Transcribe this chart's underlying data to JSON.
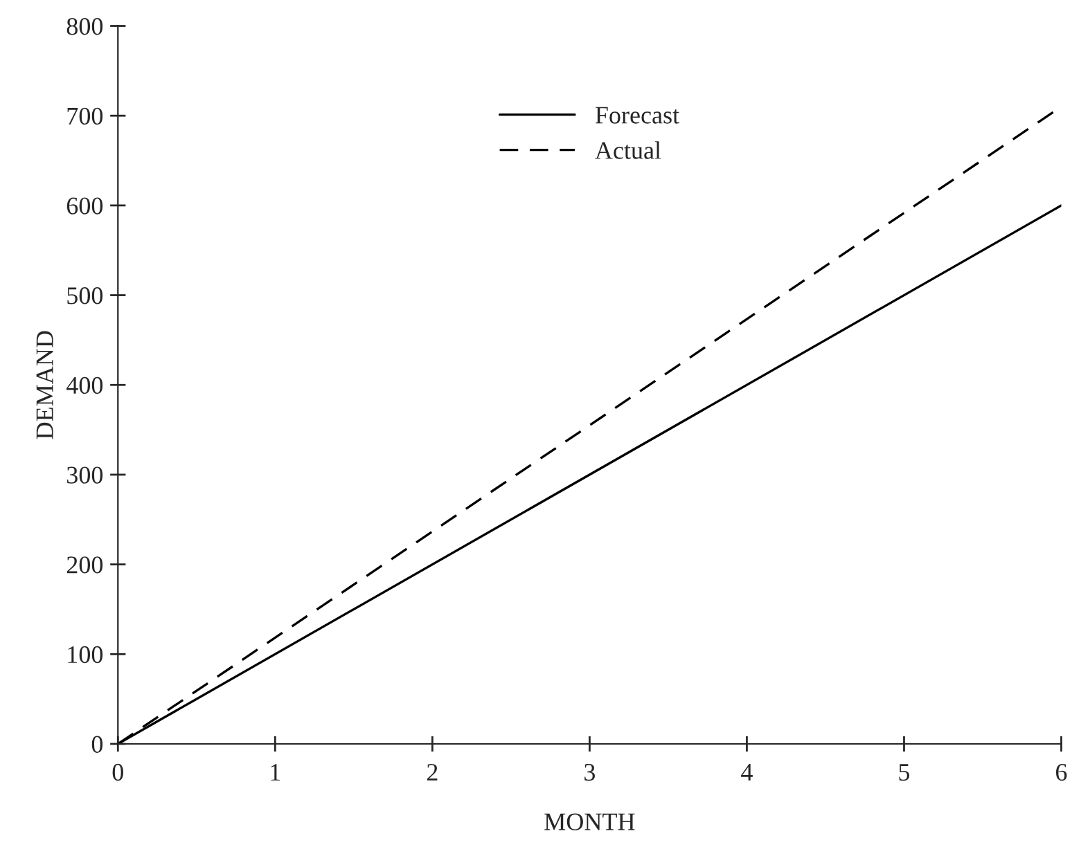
{
  "chart_data": {
    "type": "line",
    "xlabel": "MONTH",
    "ylabel": "DEMAND",
    "x": [
      0,
      6
    ],
    "series": [
      {
        "name": "Forecast",
        "color": "#000000",
        "values": [
          0,
          600
        ],
        "line_style": "solid"
      },
      {
        "name": "Actual",
        "color": "#000000",
        "values": [
          0,
          710
        ],
        "line_style": "dashed"
      }
    ],
    "xlim": [
      0,
      6
    ],
    "xticks": [
      0,
      1,
      2,
      3,
      4,
      5,
      6
    ],
    "ylim": [
      0,
      800
    ],
    "yticks": [
      0,
      100,
      200,
      300,
      400,
      500,
      600,
      700,
      800
    ],
    "grid": false,
    "legend": "top",
    "marker": "none"
  }
}
